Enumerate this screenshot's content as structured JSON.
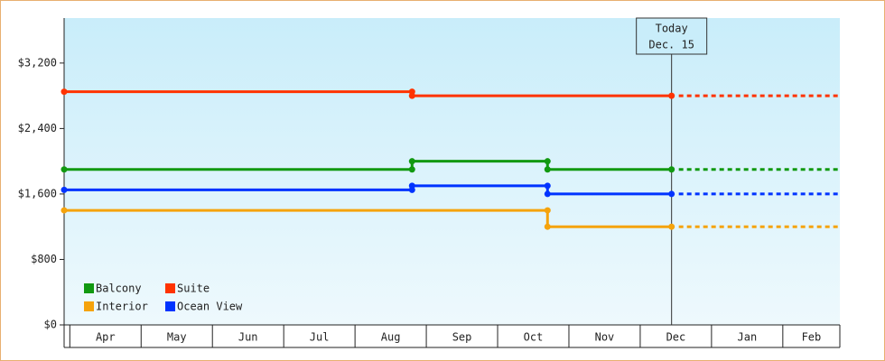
{
  "chart_data": {
    "type": "step-line",
    "categories": [
      "Apr",
      "May",
      "Jun",
      "Jul",
      "Aug",
      "Sep",
      "Oct",
      "Nov",
      "Dec",
      "Jan",
      "Feb"
    ],
    "xlim": [
      -0.08,
      10.8
    ],
    "ylim": [
      0,
      3750
    ],
    "yticks": [
      {
        "value": 0,
        "label": "$0"
      },
      {
        "value": 800,
        "label": "$800"
      },
      {
        "value": 1600,
        "label": "$1,600"
      },
      {
        "value": 2400,
        "label": "$2,400"
      },
      {
        "value": 3200,
        "label": "$3,200"
      }
    ],
    "today": {
      "x": 8.44,
      "label": [
        "Today",
        "Dec. 15"
      ]
    },
    "series": [
      {
        "name": "Balcony",
        "color": "#119911",
        "x": [
          -0.08,
          4.8,
          6.7,
          8.44
        ],
        "values": [
          1900,
          2000,
          1900,
          1900
        ]
      },
      {
        "name": "Suite",
        "color": "#ff3300",
        "x": [
          -0.08,
          4.8,
          8.44
        ],
        "values": [
          2850,
          2800,
          2800
        ]
      },
      {
        "name": "Interior",
        "color": "#f5a30c",
        "x": [
          -0.08,
          6.7,
          8.44
        ],
        "values": [
          1400,
          1200,
          1200
        ]
      },
      {
        "name": "Ocean View",
        "color": "#0033ff",
        "x": [
          -0.08,
          4.8,
          6.7,
          8.44
        ],
        "values": [
          1650,
          1700,
          1600,
          1600
        ]
      }
    ]
  }
}
